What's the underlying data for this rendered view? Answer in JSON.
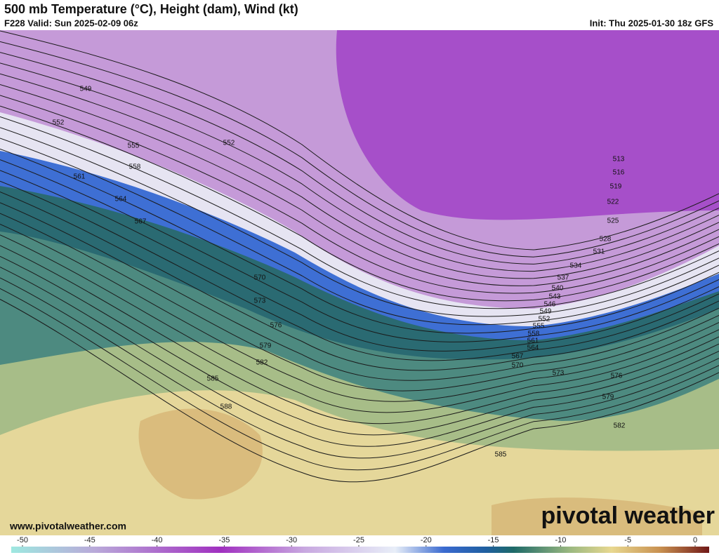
{
  "header": {
    "title": "500 mb Temperature (°C), Height (dam), Wind (kt)",
    "valid": "F228 Valid: Sun 2025-02-09 06z",
    "init": "Init: Thu 2025-01-30 18z GFS"
  },
  "contour_labels": [
    549,
    552,
    552,
    555,
    558,
    561,
    564,
    567,
    570,
    573,
    576,
    579,
    582,
    585,
    588,
    513,
    516,
    519,
    522,
    525,
    528,
    531,
    534,
    537,
    540,
    543,
    546,
    549,
    552,
    555,
    558,
    561,
    564,
    567,
    570,
    573,
    576,
    579,
    582,
    585
  ],
  "watermark": "pivotal weather",
  "url": "www.pivotalweather.com",
  "colorbar": {
    "range": [
      -50,
      0
    ],
    "ticks": [
      -50,
      -45,
      -40,
      -35,
      -30,
      -25,
      -20,
      -15,
      -10,
      -5,
      0
    ]
  }
}
